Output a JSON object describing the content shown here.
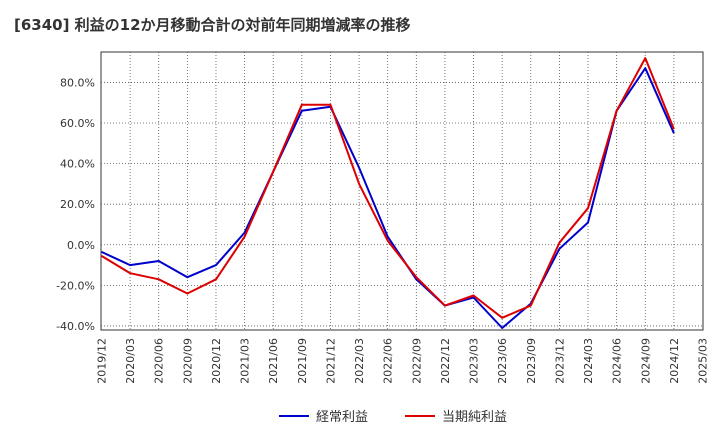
{
  "chart_data": {
    "type": "line",
    "title": "[6340]  利益の12か月移動合計の対前年同期増減率の推移",
    "xlabel": "",
    "ylabel": "",
    "ylim": [
      -42,
      95
    ],
    "y_ticks": [
      -40,
      -20,
      0,
      20,
      40,
      60,
      80
    ],
    "y_tick_labels": [
      "-40.0%",
      "-20.0%",
      "0.0%",
      "20.0%",
      "40.0%",
      "60.0%",
      "80.0%"
    ],
    "categories": [
      "2019/12",
      "2020/03",
      "2020/06",
      "2020/09",
      "2020/12",
      "2021/03",
      "2021/06",
      "2021/09",
      "2021/12",
      "2022/03",
      "2022/06",
      "2022/09",
      "2022/12",
      "2023/03",
      "2023/06",
      "2023/09",
      "2023/12",
      "2024/03",
      "2024/06",
      "2024/09",
      "2024/12",
      "2025/03"
    ],
    "grid": true,
    "legend_position": "bottom",
    "series": [
      {
        "name": "経常利益",
        "color": "#0000cc",
        "values": [
          -3.5,
          -10,
          -8,
          -16,
          -10,
          6,
          36,
          66,
          68,
          38,
          4,
          -17,
          -30,
          -26,
          -41,
          -29,
          -2,
          11,
          66,
          87,
          55,
          null
        ]
      },
      {
        "name": "当期純利益",
        "color": "#dd0000",
        "values": [
          -5.5,
          -14,
          -17,
          -24,
          -17,
          4,
          36,
          69,
          69,
          30,
          2,
          -16,
          -30,
          -25,
          -36,
          -30,
          1,
          18,
          66,
          92,
          57,
          null
        ]
      }
    ]
  }
}
